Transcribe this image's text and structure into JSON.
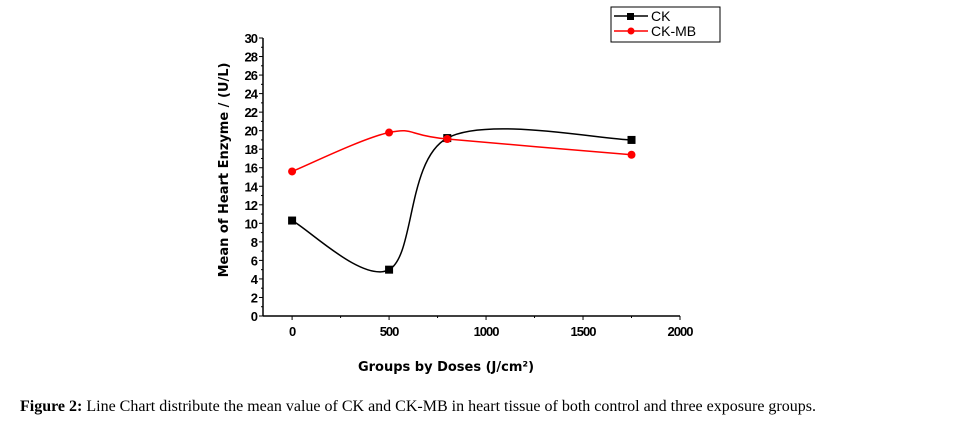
{
  "chart_data": {
    "type": "line",
    "title": "",
    "xlabel": "Groups by Doses (J/cm²)",
    "ylabel": "Mean of Heart Enzyme / (U/L)",
    "xlim": [
      -150,
      2000
    ],
    "ylim": [
      0,
      30
    ],
    "xticks": [
      0,
      500,
      1000,
      1500,
      2000
    ],
    "yticks": [
      0,
      2,
      4,
      6,
      8,
      10,
      12,
      14,
      16,
      18,
      20,
      22,
      24,
      26,
      28,
      30
    ],
    "legend_position": "top-right",
    "grid": false,
    "smooth": true,
    "series": [
      {
        "name": "CK",
        "color": "#000000",
        "marker": "square",
        "x": [
          0,
          500,
          800,
          1750
        ],
        "y": [
          10.3,
          5.0,
          19.2,
          19.0
        ]
      },
      {
        "name": "CK-MB",
        "color": "#ff0000",
        "marker": "circle",
        "x": [
          0,
          500,
          800,
          1750
        ],
        "y": [
          15.6,
          19.8,
          19.1,
          17.4
        ]
      }
    ]
  },
  "caption": {
    "label": "Figure 2:",
    "text": " Line Chart distribute the mean value of CK and CK-MB in heart tissue of both control and three exposure groups."
  }
}
